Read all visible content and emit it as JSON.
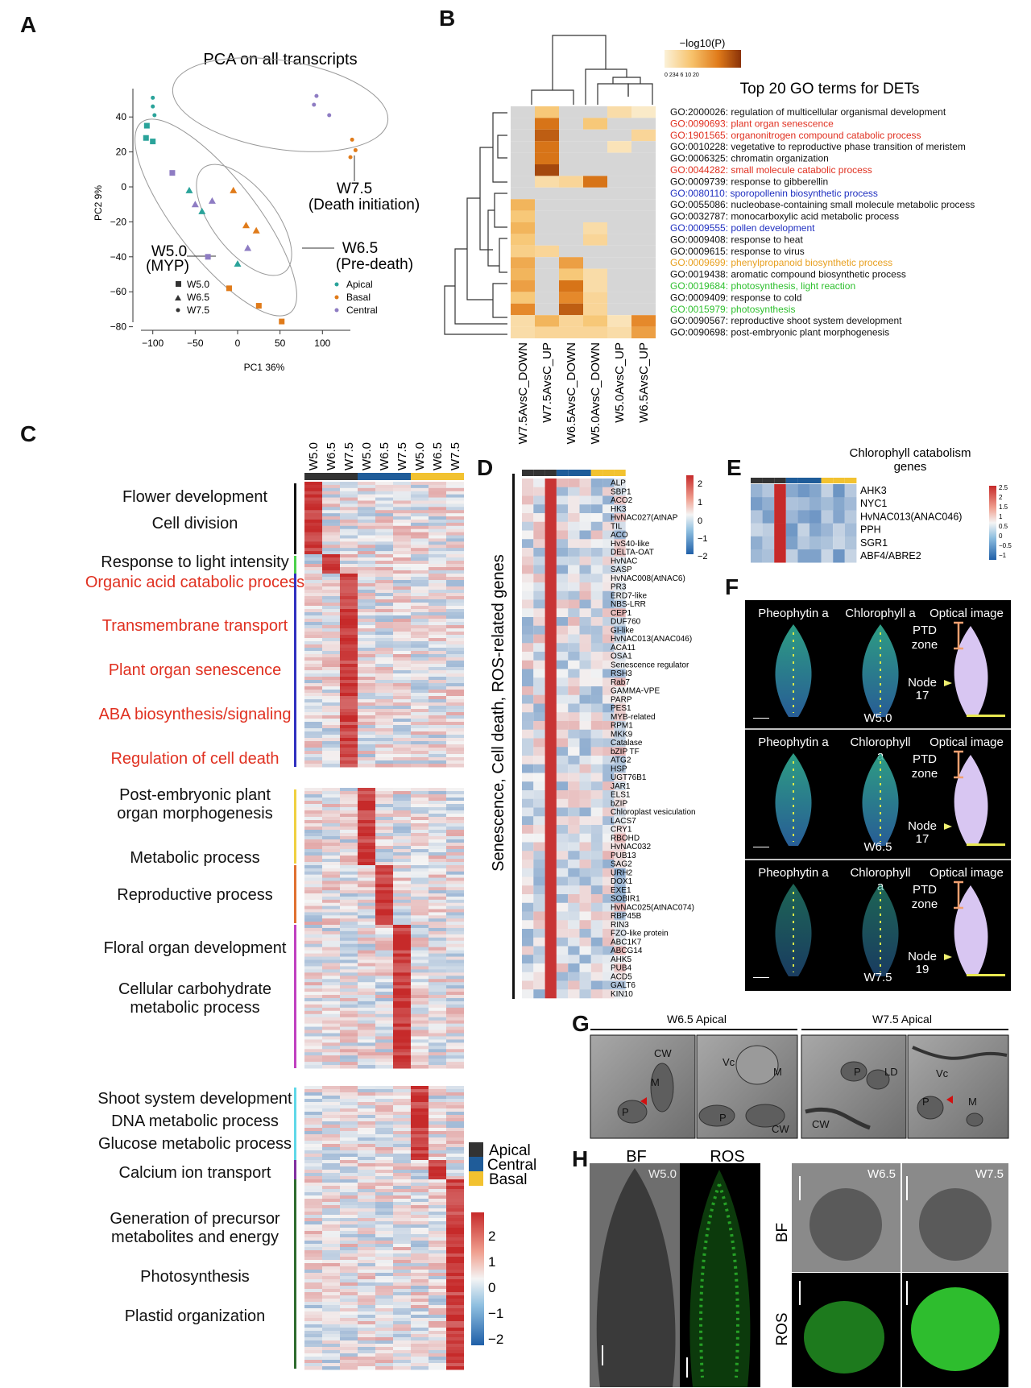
{
  "panel_letters": {
    "a": "A",
    "b": "B",
    "c": "C",
    "d": "D",
    "e": "E",
    "f": "F",
    "g": "G",
    "h": "H"
  },
  "colors": {
    "apical": "#333333",
    "central": "#1f5c99",
    "basal": "#f2c230",
    "orange": "#e07b1a",
    "teal": "#2aa39a",
    "purple": "#8e7cc3"
  },
  "pca": {
    "title": "PCA on all transcripts",
    "xlabel": "PC1 36%",
    "ylabel": "PC2 9%",
    "x_ticks": [
      "−100",
      "−50",
      "0",
      "50",
      "100"
    ],
    "y_ticks": [
      "40",
      "20",
      "0",
      "−20",
      "−40",
      "−60",
      "−80"
    ],
    "labels": {
      "w75a": "W7.5",
      "w75b": "(Death initiation)",
      "w65a": "W6.5",
      "w65b": "(Pre-death)",
      "w50a": "W5.0",
      "w50b": "(MYP)"
    },
    "legend_shapes": [
      "W5.0",
      "W6.5",
      "W7.5"
    ],
    "legend_regions": [
      "Apical",
      "Basal",
      "Central"
    ],
    "chart_data": {
      "type": "scatter",
      "title": "PCA on all transcripts",
      "xlabel": "PC1 36%",
      "ylabel": "PC2 9%",
      "xlim": [
        -115,
        150
      ],
      "ylim": [
        -82,
        52
      ],
      "points": [
        {
          "x": -100,
          "y": 51,
          "stage": "W7.5",
          "region": "Apical"
        },
        {
          "x": -100,
          "y": 46,
          "stage": "W7.5",
          "region": "Apical"
        },
        {
          "x": -98,
          "y": 41,
          "stage": "W7.5",
          "region": "Apical"
        },
        {
          "x": -107,
          "y": 35,
          "stage": "W5.0",
          "region": "Apical"
        },
        {
          "x": -108,
          "y": 28,
          "stage": "W5.0",
          "region": "Apical"
        },
        {
          "x": -100,
          "y": 26,
          "stage": "W5.0",
          "region": "Apical"
        },
        {
          "x": -77,
          "y": 8,
          "stage": "W5.0",
          "region": "Central"
        },
        {
          "x": -57,
          "y": -2,
          "stage": "W6.5",
          "region": "Apical"
        },
        {
          "x": -50,
          "y": -10,
          "stage": "W6.5",
          "region": "Central"
        },
        {
          "x": -42,
          "y": -14,
          "stage": "W6.5",
          "region": "Apical"
        },
        {
          "x": -30,
          "y": -8,
          "stage": "W6.5",
          "region": "Central"
        },
        {
          "x": -5,
          "y": -2,
          "stage": "W6.5",
          "region": "Basal"
        },
        {
          "x": 10,
          "y": -22,
          "stage": "W6.5",
          "region": "Basal"
        },
        {
          "x": 22,
          "y": -25,
          "stage": "W6.5",
          "region": "Basal"
        },
        {
          "x": 12,
          "y": -35,
          "stage": "W6.5",
          "region": "Central"
        },
        {
          "x": 0,
          "y": -44,
          "stage": "W6.5",
          "region": "Apical"
        },
        {
          "x": -35,
          "y": -40,
          "stage": "W5.0",
          "region": "Central"
        },
        {
          "x": -10,
          "y": -58,
          "stage": "W5.0",
          "region": "Basal"
        },
        {
          "x": 25,
          "y": -68,
          "stage": "W5.0",
          "region": "Basal"
        },
        {
          "x": 52,
          "y": -77,
          "stage": "W5.0",
          "region": "Basal"
        },
        {
          "x": 93,
          "y": 52,
          "stage": "W7.5",
          "region": "Central"
        },
        {
          "x": 90,
          "y": 47,
          "stage": "W7.5",
          "region": "Central"
        },
        {
          "x": 108,
          "y": 41,
          "stage": "W7.5",
          "region": "Central"
        },
        {
          "x": 135,
          "y": 27,
          "stage": "W7.5",
          "region": "Basal"
        },
        {
          "x": 139,
          "y": 21,
          "stage": "W7.5",
          "region": "Basal"
        },
        {
          "x": 133,
          "y": 17,
          "stage": "W7.5",
          "region": "Basal"
        }
      ]
    }
  },
  "go": {
    "title": "Top 20 GO terms for DETs",
    "scale_title": "−log10(P)",
    "scale_ticks": "0 234 6  10          20",
    "terms": [
      {
        "text": "GO:2000026: regulation of multicellular organismal development",
        "color": "#111111"
      },
      {
        "text": "GO:0090693: plant organ senescence",
        "color": "#e03020"
      },
      {
        "text": "GO:1901565: organonitrogen compound catabolic process",
        "color": "#e03020"
      },
      {
        "text": "GO:0010228: vegetative to reproductive phase transition of meristem",
        "color": "#111111"
      },
      {
        "text": "GO:0006325: chromatin organization",
        "color": "#111111"
      },
      {
        "text": "GO:0044282: small molecule catabolic process",
        "color": "#e03020"
      },
      {
        "text": "GO:0009739: response to gibberellin",
        "color": "#111111"
      },
      {
        "text": "GO:0080110: sporopollenin biosynthetic process",
        "color": "#2030c0"
      },
      {
        "text": "GO:0055086: nucleobase-containing small molecule metabolic process",
        "color": "#111111"
      },
      {
        "text": "GO:0032787: monocarboxylic acid metabolic process",
        "color": "#111111"
      },
      {
        "text": "GO:0009555: pollen development",
        "color": "#2030c0"
      },
      {
        "text": "GO:0009408: response to heat",
        "color": "#111111"
      },
      {
        "text": "GO:0009615: response to virus",
        "color": "#111111"
      },
      {
        "text": "GO:0009699: phenylpropanoid biosynthetic process",
        "color": "#e8a020"
      },
      {
        "text": "GO:0019438: aromatic compound biosynthetic process",
        "color": "#111111"
      },
      {
        "text": "GO:0019684: photosynthesis, light reaction",
        "color": "#30c030"
      },
      {
        "text": "GO:0009409: response to cold",
        "color": "#111111"
      },
      {
        "text": "GO:0015979: photosynthesis",
        "color": "#30c030"
      },
      {
        "text": "GO:0090567: reproductive shoot system development",
        "color": "#111111"
      },
      {
        "text": "GO:0090698: post-embryonic plant morphogenesis",
        "color": "#111111"
      }
    ],
    "columns": [
      "W7.5AvsC_DOWN",
      "W7.5AvsC_UP",
      "W6.5AvsC_DOWN",
      "W5.0AvsC_DOWN",
      "W5.0AvsC_UP",
      "W6.5AvsC_UP"
    ],
    "chart_data": {
      "type": "heatmap",
      "title": "Top 20 GO terms for DETs",
      "colorbar": "-log10(P)",
      "range": [
        0,
        20
      ],
      "rows": 20,
      "values": [
        [
          0,
          6,
          0,
          0,
          3,
          1
        ],
        [
          0,
          14,
          0,
          6,
          0,
          0
        ],
        [
          0,
          16,
          0,
          0,
          0,
          4
        ],
        [
          0,
          14,
          0,
          0,
          2,
          0
        ],
        [
          0,
          14,
          0,
          0,
          0,
          0
        ],
        [
          0,
          18,
          0,
          0,
          0,
          0
        ],
        [
          0,
          3,
          4,
          14,
          0,
          0
        ],
        [
          0,
          0,
          0,
          0,
          0,
          0
        ],
        [
          8,
          0,
          0,
          0,
          0,
          0
        ],
        [
          6,
          0,
          0,
          0,
          0,
          0
        ],
        [
          8,
          0,
          0,
          3,
          0,
          0
        ],
        [
          6,
          0,
          0,
          4,
          0,
          0
        ],
        [
          5,
          4,
          0,
          0,
          0,
          0
        ],
        [
          9,
          0,
          10,
          0,
          0,
          0
        ],
        [
          8,
          0,
          6,
          3,
          0,
          0
        ],
        [
          10,
          0,
          14,
          3,
          0,
          0
        ],
        [
          6,
          0,
          12,
          4,
          0,
          0
        ],
        [
          12,
          0,
          16,
          4,
          0,
          0
        ],
        [
          3,
          8,
          4,
          6,
          2,
          12
        ],
        [
          3,
          4,
          4,
          4,
          3,
          10
        ]
      ]
    }
  },
  "c": {
    "columns": [
      "W5.0",
      "W6.5",
      "W7.5",
      "W5.0",
      "W6.5",
      "W7.5",
      "W5.0",
      "W6.5",
      "W7.5"
    ],
    "labels": [
      {
        "text": "Flower development",
        "color": "#111111"
      },
      {
        "text": "Cell division",
        "color": "#111111"
      },
      {
        "text": "Response to light intensity",
        "color": "#111111"
      },
      {
        "text": "Organic acid catabolic process",
        "color": "#e03020"
      },
      {
        "text": "Transmembrane transport",
        "color": "#e03020"
      },
      {
        "text": "Plant organ senescence",
        "color": "#e03020"
      },
      {
        "text": "ABA biosynthesis/signaling",
        "color": "#e03020"
      },
      {
        "text": "Regulation of cell death",
        "color": "#e03020"
      },
      {
        "text": "Post-embryonic plant",
        "color": "#111111"
      },
      {
        "text": "organ morphogenesis",
        "color": "#111111"
      },
      {
        "text": "Metabolic process",
        "color": "#111111"
      },
      {
        "text": "Reproductive process",
        "color": "#111111"
      },
      {
        "text": "Floral organ development",
        "color": "#111111"
      },
      {
        "text": "Cellular carbohydrate",
        "color": "#111111"
      },
      {
        "text": "metabolic process",
        "color": "#111111"
      },
      {
        "text": "Shoot system development",
        "color": "#111111"
      },
      {
        "text": "DNA metabolic process",
        "color": "#111111"
      },
      {
        "text": "Glucose metabolic process",
        "color": "#111111"
      },
      {
        "text": "Calcium ion transport",
        "color": "#111111"
      },
      {
        "text": "Generation of precursor",
        "color": "#111111"
      },
      {
        "text": "metabolites and energy",
        "color": "#111111"
      },
      {
        "text": "Photosynthesis",
        "color": "#111111"
      },
      {
        "text": "Plastid organization",
        "color": "#111111"
      }
    ],
    "legend": [
      "Apical",
      "Central",
      "Basal"
    ],
    "scale_ticks": [
      "2",
      "1",
      "0",
      "−1",
      "−2"
    ]
  },
  "d": {
    "axis_title": "Senescence, Cell death, ROS-related genes",
    "genes": [
      "ALP",
      "SBP1",
      "ACO2",
      "HK3",
      "HvNAC027(AtNAP",
      "TIL",
      "ACO",
      "HvS40-like",
      "DELTA-OAT",
      "HvNAC",
      "SASP",
      "HvNAC008(AtNAC6)",
      "PR3",
      "ERD7-like",
      "NBS-LRR",
      "CEP1",
      "DUF760",
      "GI-like",
      "HvNAC013(ANAC046)",
      "ACA11",
      "OSA1",
      "Senescence regulator",
      "RSH3",
      "Rab7",
      "GAMMA-VPE",
      "PARP",
      "PES1",
      "MYB-related",
      "RPM1",
      "MKK9",
      "Catalase",
      "bZIP TF",
      "ATG2",
      "HSP",
      "UGT76B1",
      "JAR1",
      "ELS1",
      "bZIP",
      "Chloroplast vesiculation",
      "LACS7",
      "CRY1",
      "RBOHD",
      "HvNAC032",
      "PUB13",
      "SAG2",
      "URH2",
      "DOX1",
      "EXE1",
      "SOBIR1",
      "HvNAC025(AtNAC074)",
      "RBP45B",
      "RIN3",
      "FZO-like protein",
      "ABC1K7",
      "ABCG14",
      "AHK5",
      "PUB4",
      "ACD5",
      "GALT6",
      "KIN10"
    ],
    "scale_ticks": [
      "2",
      "1",
      "0",
      "−1",
      "−2"
    ]
  },
  "e": {
    "title1": "Chlorophyll catabolism",
    "title2": "genes",
    "genes": [
      "AHK3",
      "NYC1",
      "HvNAC013(ANAC046)",
      "PPH",
      "SGR1",
      "ABF4/ABRE2"
    ],
    "scale_ticks": [
      "2.5",
      "2",
      "1.5",
      "1",
      "0.5",
      "0",
      "−0.5",
      "−1"
    ]
  },
  "f": {
    "rows": [
      {
        "h1": "Pheophytin a",
        "h2": "Chlorophyll a",
        "h3": "Optical image",
        "stage": "W5.0",
        "node1": "Node",
        "node2": "17"
      },
      {
        "h1": "Pheophytin a",
        "h2": "Chlorophyll",
        "h3": "Optical image",
        "stage": "W6.5",
        "node1": "Node",
        "node2": "17"
      },
      {
        "h1": "Pheophytin a",
        "h2": "Chlorophyll",
        "h3": "Optical image",
        "stage": "W7.5",
        "node1": "Node",
        "node2": "19"
      }
    ],
    "ptd1": "PTD",
    "ptd2": "zone",
    "chl_a": "a"
  },
  "g": {
    "title_left": "W6.5 Apical",
    "title_right": "W7.5 Apical",
    "labels": [
      "CW",
      "M",
      "P",
      "Vc",
      "M",
      "P",
      "CW",
      "P",
      "LD",
      "Vc",
      "P",
      "M",
      "CW"
    ]
  },
  "h": {
    "bf": "BF",
    "ros": "ROS",
    "w50": "W5.0",
    "w65": "W6.5",
    "w75": "W7.5"
  }
}
